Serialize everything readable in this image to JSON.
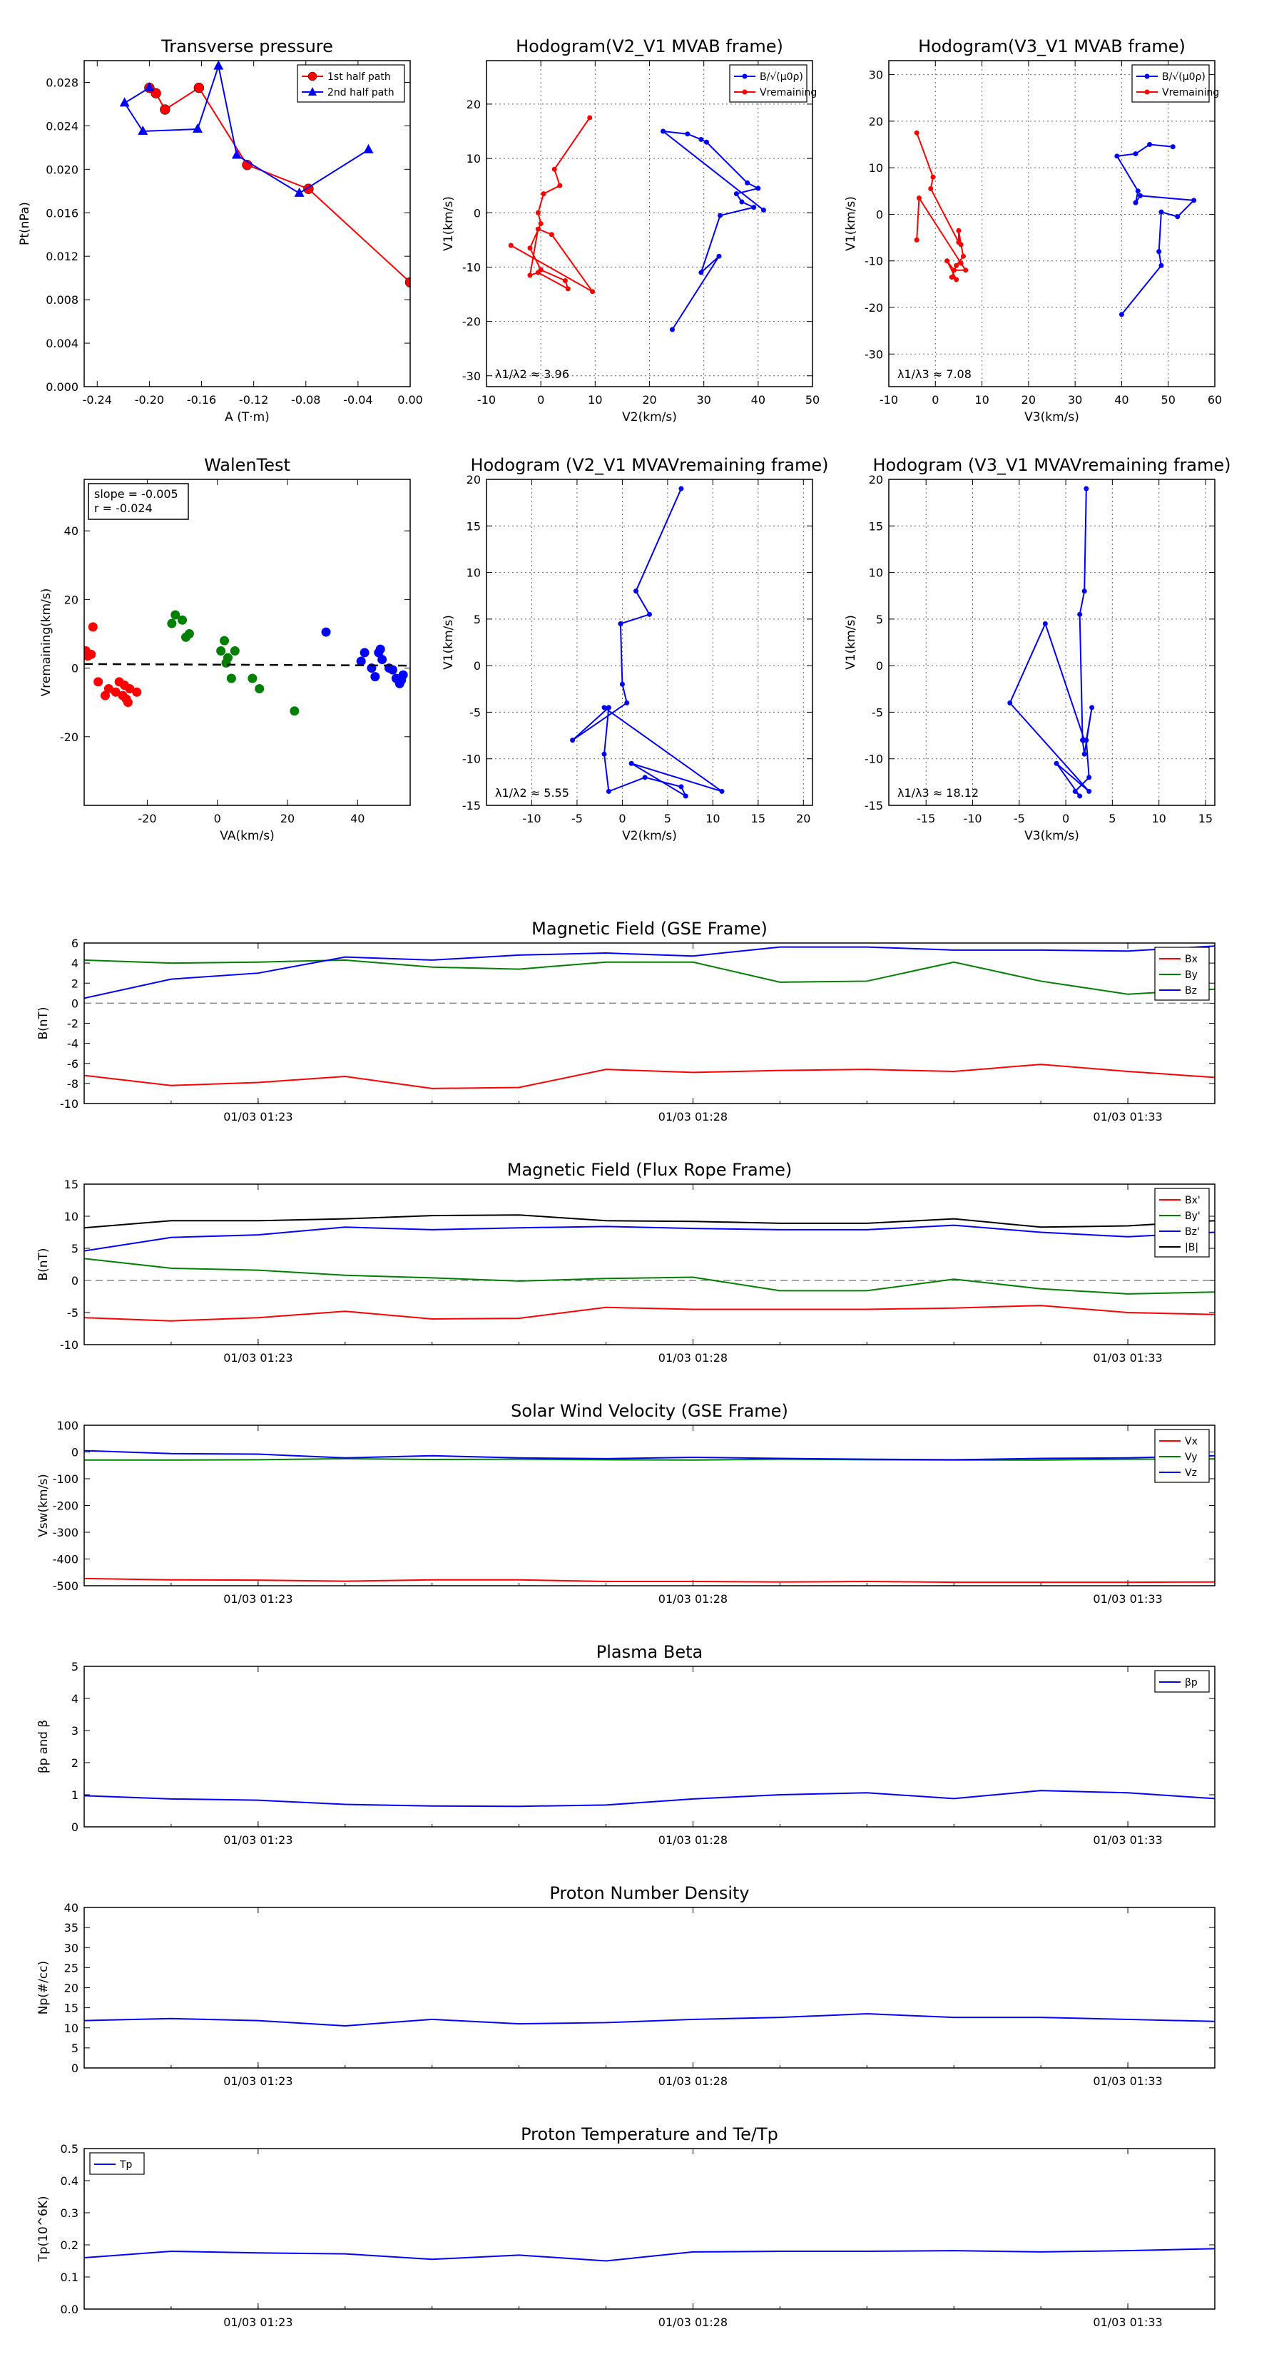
{
  "chart_data": [
    {
      "id": "tp",
      "type": "line",
      "title": "Transverse pressure",
      "xlabel": "A (T·m)",
      "ylabel": "Pt(nPa)",
      "xlim": [
        -0.25,
        0.0
      ],
      "ylim": [
        0.0,
        0.03
      ],
      "xticks": [
        "-0.24",
        "-0.20",
        "-0.16",
        "-0.12",
        "-0.08",
        "-0.04",
        "0.00"
      ],
      "yticks": [
        "0.000",
        "0.004",
        "0.008",
        "0.012",
        "0.016",
        "0.020",
        "0.024",
        "0.028"
      ],
      "legend": "top-right",
      "series": [
        {
          "name": "1st half path",
          "color": "#ff0000",
          "marker": "circle",
          "x": [
            0.0,
            -0.078,
            -0.125,
            -0.162,
            -0.188,
            -0.195,
            -0.2
          ],
          "y": [
            0.0096,
            0.0182,
            0.0204,
            0.0275,
            0.0255,
            0.027,
            0.0275
          ]
        },
        {
          "name": "2nd half path",
          "color": "#0000ff",
          "marker": "triangle",
          "x": [
            -0.032,
            -0.085,
            -0.133,
            -0.147,
            -0.163,
            -0.205,
            -0.219,
            -0.2
          ],
          "y": [
            0.0218,
            0.0178,
            0.0213,
            0.0295,
            0.0237,
            0.0235,
            0.0261,
            0.0275
          ]
        }
      ]
    },
    {
      "id": "h1",
      "type": "line",
      "title": "Hodogram(V2_V1 MVAB frame)",
      "xlabel": "V2(km/s)",
      "ylabel": "V1(km/s)",
      "xlim": [
        -10,
        50
      ],
      "ylim": [
        -32,
        28
      ],
      "xticks": [
        "-10",
        "0",
        "10",
        "20",
        "30",
        "40",
        "50"
      ],
      "yticks": [
        "-30",
        "-20",
        "-10",
        "0",
        "10",
        "20"
      ],
      "annotation": "λ1/λ2 ≈ 3.96",
      "legend": "top-right",
      "series": [
        {
          "name": "B/√(μ0ρ)",
          "color": "#0000ff",
          "x": [
            24.2,
            32.8,
            29.5,
            33.0,
            39.2,
            37.0,
            36.0,
            40.0,
            38.0,
            30.5,
            29.5,
            27.0,
            22.5,
            41.0
          ],
          "y": [
            -21.5,
            -8.0,
            -11.0,
            -0.5,
            1.0,
            2.0,
            3.5,
            4.5,
            5.5,
            13.0,
            13.5,
            14.5,
            15.0,
            0.5
          ]
        },
        {
          "name": "Vremaining",
          "color": "#ff0000",
          "x": [
            9.0,
            2.5,
            3.5,
            0.5,
            -0.5,
            0.0,
            -2.0,
            0.0,
            4.5,
            5.0,
            -0.5,
            -2.0,
            -0.5,
            2.0,
            9.5,
            -5.5
          ],
          "y": [
            17.5,
            8.0,
            5.0,
            3.5,
            0.0,
            -2.0,
            -6.5,
            -10.5,
            -12.5,
            -14.0,
            -11.0,
            -11.5,
            -3.0,
            -4.0,
            -14.5,
            -6.0
          ]
        }
      ]
    },
    {
      "id": "h2",
      "type": "line",
      "title": "Hodogram(V3_V1 MVAB frame)",
      "xlabel": "V3(km/s)",
      "ylabel": "V1(km/s)",
      "xlim": [
        -10,
        60
      ],
      "ylim": [
        -37,
        33
      ],
      "xticks": [
        "-10",
        "0",
        "10",
        "20",
        "30",
        "40",
        "50",
        "60"
      ],
      "yticks": [
        "-30",
        "-20",
        "-10",
        "0",
        "10",
        "20",
        "30"
      ],
      "annotation": "λ1/λ3 ≈ 7.08",
      "legend": "top-right",
      "series": [
        {
          "name": "B/√(μ0ρ)",
          "color": "#0000ff",
          "x": [
            40.0,
            48.5,
            48.0,
            48.5,
            52.0,
            55.5,
            44.0,
            43.0,
            43.5,
            39.0,
            43.0,
            46.0,
            51.0
          ],
          "y": [
            -21.5,
            -11.0,
            -8.0,
            0.5,
            -0.5,
            3.0,
            4.0,
            2.5,
            5.0,
            12.5,
            13.0,
            15.0,
            14.5
          ]
        },
        {
          "name": "Vremaining",
          "color": "#ff0000",
          "x": [
            -4.0,
            -0.5,
            -1.0,
            5.0,
            5.0,
            5.5,
            6.0,
            4.5,
            3.5,
            4.5,
            2.5,
            4.0,
            6.5,
            5.5,
            -3.5,
            -4.0
          ],
          "y": [
            17.5,
            8.0,
            5.5,
            -6.0,
            -3.5,
            -6.5,
            -9.0,
            -11.0,
            -13.5,
            -14.0,
            -10.0,
            -12.0,
            -12.0,
            -10.5,
            3.5,
            -5.5
          ]
        }
      ]
    },
    {
      "id": "walen",
      "type": "scatter",
      "title": "WalenTest",
      "xlabel": "VA(km/s)",
      "ylabel": "Vremaining(km/s)",
      "xlim": [
        -38,
        55
      ],
      "ylim": [
        -40,
        55
      ],
      "xticks": [
        "-20",
        "0",
        "20",
        "40"
      ],
      "yticks": [
        "-20",
        "0",
        "20",
        "40"
      ],
      "annotation_lines": [
        "slope = -0.005",
        "r = -0.024"
      ],
      "fit": {
        "slope": -0.005,
        "intercept": 1.0
      },
      "series": [
        {
          "name": "",
          "color": "#ff0000",
          "x": [
            -37.5,
            -37,
            -36,
            -35.5,
            -34,
            -32,
            -31,
            -29,
            -28,
            -27,
            -26.5,
            -26,
            -25.5,
            -25,
            -23
          ],
          "y": [
            5,
            3.5,
            4,
            12,
            -4,
            -8,
            -6,
            -7,
            -4,
            -8,
            -5,
            -9,
            -10,
            -6,
            -7
          ]
        },
        {
          "name": "",
          "color": "#008000",
          "x": [
            -13,
            -12,
            -10,
            -9,
            -8,
            1,
            2,
            2.5,
            3,
            4,
            5,
            10,
            12,
            22
          ],
          "y": [
            13,
            15.5,
            14,
            9,
            10,
            5,
            8,
            1.5,
            3,
            -3,
            5,
            -3,
            -6,
            -12.5
          ]
        },
        {
          "name": "",
          "color": "#0000ff",
          "x": [
            31,
            41,
            42,
            44,
            45,
            46,
            46.5,
            47,
            49,
            50,
            51,
            52,
            52.5,
            53
          ],
          "y": [
            10.5,
            2,
            4.5,
            0,
            -2.5,
            4.5,
            5.5,
            2.5,
            0,
            -0.5,
            -3,
            -4.5,
            -3.5,
            -2
          ]
        }
      ]
    },
    {
      "id": "h3",
      "type": "line",
      "title": "Hodogram (V2_V1 MVAVremaining frame)",
      "xlabel": "V2(km/s)",
      "ylabel": "V1(km/s)",
      "xlim": [
        -15,
        21
      ],
      "ylim": [
        -15,
        20
      ],
      "xticks": [
        "-10",
        "-5",
        "0",
        "5",
        "10",
        "15",
        "20"
      ],
      "yticks": [
        "-15",
        "-10",
        "-5",
        "0",
        "5",
        "10",
        "15",
        "20"
      ],
      "annotation": "λ1/λ2 ≈ 5.55",
      "series": [
        {
          "name": "",
          "color": "#0000ff",
          "x": [
            6.5,
            1.5,
            3.0,
            -0.2,
            0.0,
            0.5,
            -5.5,
            -1.5,
            -2.0,
            -1.5,
            2.5,
            6.5,
            7.0,
            1.0,
            11.0,
            -2.0
          ],
          "y": [
            19.0,
            8.0,
            5.5,
            4.5,
            -2.0,
            -4.0,
            -8.0,
            -4.5,
            -9.5,
            -13.5,
            -12.0,
            -13.0,
            -14.0,
            -10.5,
            -13.5,
            -4.5
          ]
        }
      ]
    },
    {
      "id": "h4",
      "type": "line",
      "title": "Hodogram (V3_V1 MVAVremaining frame)",
      "xlabel": "V3(km/s)",
      "ylabel": "V1(km/s)",
      "xlim": [
        -19,
        16
      ],
      "ylim": [
        -15,
        20
      ],
      "xticks": [
        "-15",
        "-10",
        "-5",
        "0",
        "5",
        "10",
        "15"
      ],
      "yticks": [
        "-15",
        "-10",
        "-5",
        "0",
        "5",
        "10",
        "15",
        "20"
      ],
      "annotation": "λ1/λ3 ≈ 18.12",
      "series": [
        {
          "name": "",
          "color": "#0000ff",
          "x": [
            2.2,
            2.0,
            1.5,
            1.8,
            2.0,
            2.8,
            2.2,
            2.5,
            1.0,
            1.5,
            -1.0,
            2.5,
            -6.0,
            -2.2,
            2.0
          ],
          "y": [
            19.0,
            8.0,
            5.5,
            -8.0,
            -9.5,
            -4.5,
            -8.0,
            -12.0,
            -13.5,
            -14.0,
            -10.5,
            -13.5,
            -4.0,
            4.5,
            -8.0
          ]
        }
      ]
    },
    {
      "id": "ts1",
      "type": "line",
      "title": "Magnetic Field (GSE Frame)",
      "ylabel": "B(nT)",
      "ylim": [
        -10,
        6
      ],
      "yticks": [
        "-10",
        "-8",
        "-6",
        "-4",
        "-2",
        "0",
        "2",
        "4",
        "6"
      ],
      "xticks": [
        "01/03 01:23",
        "01/03 01:28",
        "01/03 01:33"
      ],
      "xtick_index": [
        2,
        7,
        12
      ],
      "zero_line": true,
      "legend": "top-right",
      "series": [
        {
          "name": "Bx",
          "color": "#ff0000",
          "values": [
            -7.2,
            -8.2,
            -7.9,
            -7.3,
            -8.5,
            -8.4,
            -6.6,
            -6.9,
            -6.7,
            -6.6,
            -6.8,
            -6.1,
            -6.8,
            -7.4
          ]
        },
        {
          "name": "By",
          "color": "#008000",
          "values": [
            4.3,
            4.0,
            4.1,
            4.3,
            3.6,
            3.4,
            4.1,
            4.1,
            2.1,
            2.2,
            4.1,
            2.2,
            0.9,
            1.4
          ]
        },
        {
          "name": "Bz",
          "color": "#0000ff",
          "values": [
            0.5,
            2.4,
            3.0,
            4.6,
            4.3,
            4.8,
            5.0,
            4.7,
            5.6,
            5.6,
            5.3,
            5.3,
            5.2,
            5.7
          ]
        }
      ]
    },
    {
      "id": "ts2",
      "type": "line",
      "title": "Magnetic Field (Flux Rope Frame)",
      "ylabel": "B(nT)",
      "ylim": [
        -10,
        15
      ],
      "yticks": [
        "-10",
        "-5",
        "0",
        "5",
        "10",
        "15"
      ],
      "xticks": [
        "01/03 01:23",
        "01/03 01:28",
        "01/03 01:33"
      ],
      "xtick_index": [
        2,
        7,
        12
      ],
      "zero_line": true,
      "legend": "top-right",
      "series": [
        {
          "name": "Bx'",
          "color": "#ff0000",
          "values": [
            -5.8,
            -6.3,
            -5.8,
            -4.8,
            -6.0,
            -5.9,
            -4.2,
            -4.5,
            -4.5,
            -4.5,
            -4.3,
            -3.9,
            -5.0,
            -5.3
          ]
        },
        {
          "name": "By'",
          "color": "#008000",
          "values": [
            3.4,
            1.9,
            1.6,
            0.8,
            0.4,
            -0.1,
            0.3,
            0.5,
            -1.6,
            -1.6,
            0.2,
            -1.3,
            -2.1,
            -1.8
          ]
        },
        {
          "name": "Bz'",
          "color": "#0000ff",
          "values": [
            4.6,
            6.7,
            7.1,
            8.3,
            7.9,
            8.2,
            8.4,
            8.1,
            7.9,
            7.9,
            8.6,
            7.5,
            6.8,
            7.5
          ]
        },
        {
          "name": "|B|",
          "color": "#000000",
          "values": [
            8.2,
            9.3,
            9.3,
            9.6,
            10.1,
            10.2,
            9.3,
            9.2,
            8.9,
            8.9,
            9.6,
            8.3,
            8.5,
            9.3
          ]
        }
      ]
    },
    {
      "id": "ts3",
      "type": "line",
      "title": "Solar Wind Velocity (GSE Frame)",
      "ylabel": "Vsw(km/s)",
      "ylim": [
        -500,
        100
      ],
      "yticks": [
        "-500",
        "-400",
        "-300",
        "-200",
        "-100",
        "0",
        "100"
      ],
      "xticks": [
        "01/03 01:23",
        "01/03 01:28",
        "01/03 01:33"
      ],
      "xtick_index": [
        2,
        7,
        12
      ],
      "legend": "top-right",
      "series": [
        {
          "name": "Vx",
          "color": "#ff0000",
          "values": [
            -473,
            -478,
            -479,
            -483,
            -478,
            -478,
            -484,
            -484,
            -486,
            -484,
            -487,
            -487,
            -487,
            -486
          ]
        },
        {
          "name": "Vy",
          "color": "#008000",
          "values": [
            -30,
            -30,
            -29,
            -25,
            -28,
            -27,
            -29,
            -30,
            -27,
            -29,
            -30,
            -30,
            -27,
            -26
          ]
        },
        {
          "name": "Vz",
          "color": "#0000ff",
          "values": [
            5,
            -6,
            -8,
            -22,
            -14,
            -22,
            -25,
            -20,
            -24,
            -27,
            -29,
            -24,
            -22,
            -14
          ]
        }
      ]
    },
    {
      "id": "ts4",
      "type": "line",
      "title": "Plasma Beta",
      "ylabel": "βp and β",
      "ylim": [
        0,
        5
      ],
      "yticks": [
        "0",
        "1",
        "2",
        "3",
        "4",
        "5"
      ],
      "xticks": [
        "01/03 01:23",
        "01/03 01:28",
        "01/03 01:33"
      ],
      "xtick_index": [
        2,
        7,
        12
      ],
      "legend": "top-right",
      "series": [
        {
          "name": "βp",
          "color": "#0000ff",
          "values": [
            0.97,
            0.87,
            0.83,
            0.7,
            0.65,
            0.64,
            0.68,
            0.87,
            1.0,
            1.06,
            0.88,
            1.13,
            1.06,
            0.88
          ]
        }
      ]
    },
    {
      "id": "ts5",
      "type": "line",
      "title": "Proton Number Density",
      "ylabel": "Np(#/cc)",
      "ylim": [
        0,
        40
      ],
      "yticks": [
        "0",
        "5",
        "10",
        "15",
        "20",
        "25",
        "30",
        "35",
        "40"
      ],
      "xticks": [
        "01/03 01:23",
        "01/03 01:28",
        "01/03 01:33"
      ],
      "xtick_index": [
        2,
        7,
        12
      ],
      "series": [
        {
          "name": "",
          "color": "#0000ff",
          "values": [
            11.8,
            12.3,
            11.8,
            10.5,
            12.1,
            11.0,
            11.3,
            12.1,
            12.6,
            13.5,
            12.6,
            12.6,
            12.1,
            11.6
          ]
        }
      ]
    },
    {
      "id": "ts6",
      "type": "line",
      "title": "Proton Temperature and Te/Tp",
      "ylabel": "Tp(10^6K)",
      "ylim": [
        0,
        0.5
      ],
      "yticks": [
        "0.0",
        "0.1",
        "0.2",
        "0.3",
        "0.4",
        "0.5"
      ],
      "xticks": [
        "01/03 01:23",
        "01/03 01:28",
        "01/03 01:33"
      ],
      "xtick_index": [
        2,
        7,
        12
      ],
      "legend": "top-left",
      "series": [
        {
          "name": "Tp",
          "color": "#0000ff",
          "values": [
            0.16,
            0.18,
            0.175,
            0.172,
            0.155,
            0.168,
            0.15,
            0.178,
            0.18,
            0.18,
            0.182,
            0.178,
            0.182,
            0.188
          ]
        }
      ]
    }
  ]
}
